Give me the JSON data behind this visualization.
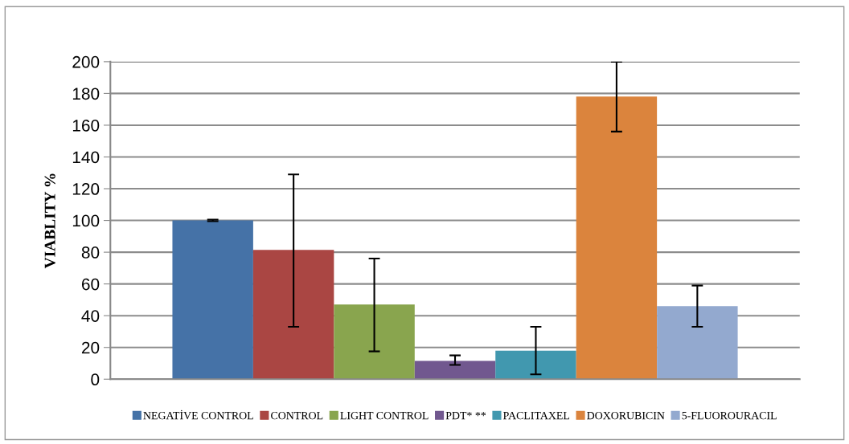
{
  "chart_data": {
    "type": "bar",
    "ylabel": "VIABLITY %",
    "categories": [
      null
    ],
    "series": [
      {
        "name": "NEGATİVE CONTROL",
        "color": "#4572a7",
        "values": [
          100
        ],
        "errors": [
          0.5
        ]
      },
      {
        "name": "CONTROL",
        "color": "#aa4643",
        "values": [
          81.5
        ],
        "errors": [
          [
            33,
            129
          ]
        ]
      },
      {
        "name": "LIGHT CONTROL",
        "color": "#89a54e",
        "values": [
          47
        ],
        "errors": [
          [
            17.5,
            76
          ]
        ]
      },
      {
        "name": "PDT* **",
        "color": "#71588f",
        "values": [
          11.5
        ],
        "errors": [
          [
            9,
            15
          ]
        ]
      },
      {
        "name": "PACLITAXEL",
        "color": "#4198af",
        "values": [
          18
        ],
        "errors": [
          [
            3,
            33
          ]
        ]
      },
      {
        "name": "DOXORUBICIN",
        "color": "#db843d",
        "values": [
          178
        ],
        "errors": [
          [
            156,
            200
          ]
        ]
      },
      {
        "name": "5-FLUOROURACIL",
        "color": "#93a9cf",
        "values": [
          46
        ],
        "errors": [
          [
            33,
            59
          ]
        ]
      }
    ],
    "ylim": [
      0,
      200
    ],
    "yticks": [
      0,
      20,
      40,
      60,
      80,
      100,
      120,
      140,
      160,
      180,
      200
    ],
    "grid": "y",
    "legend": "bottom"
  }
}
